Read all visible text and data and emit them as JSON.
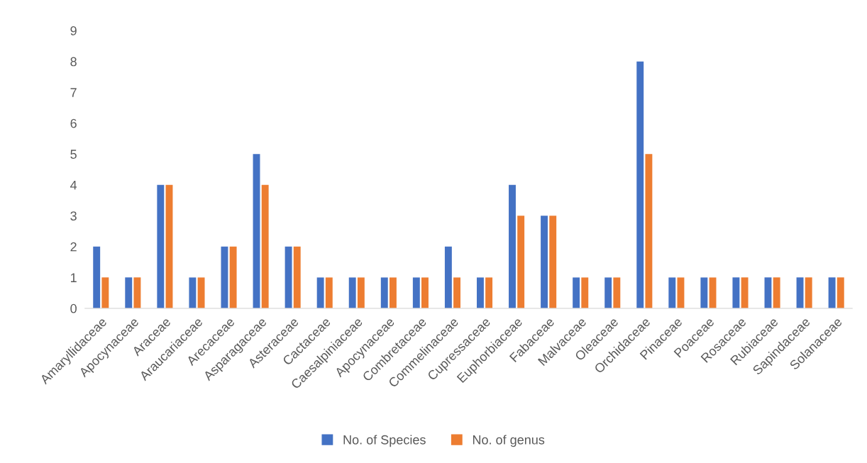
{
  "chart_data": {
    "type": "bar",
    "categories": [
      "Amaryllidaceae",
      "Apocynaceae",
      "Araceae",
      "Araucariaceae",
      "Arecaceae",
      "Asparagaceae",
      "Asteraceae",
      "Cactaceae",
      "Caesalpiniaceae",
      "Apocynaceae",
      "Combretaceae",
      "Commelinaceae",
      "Cupressaceae",
      "Euphorbiaceae",
      "Fabaceae",
      "Malvaceae",
      "Oleaceae",
      "Orchidaceae",
      "Pinaceae",
      "Poaceae",
      "Rosaceae",
      "Rubiaceae",
      "Sapindaceae",
      "Solanaceae"
    ],
    "series": [
      {
        "name": "No. of Species",
        "color": "#4472c4",
        "values": [
          2,
          1,
          4,
          1,
          2,
          5,
          2,
          1,
          1,
          1,
          1,
          2,
          1,
          4,
          3,
          1,
          1,
          8,
          1,
          1,
          1,
          1,
          1,
          1
        ]
      },
      {
        "name": "No. of genus",
        "color": "#ed7d31",
        "values": [
          1,
          1,
          4,
          1,
          2,
          4,
          2,
          1,
          1,
          1,
          1,
          1,
          1,
          3,
          3,
          1,
          1,
          5,
          1,
          1,
          1,
          1,
          1,
          1
        ]
      }
    ],
    "ylim": [
      0,
      9
    ],
    "yticks": [
      0,
      1,
      2,
      3,
      4,
      5,
      6,
      7,
      8,
      9
    ],
    "grid": false,
    "legend": "bottom"
  }
}
